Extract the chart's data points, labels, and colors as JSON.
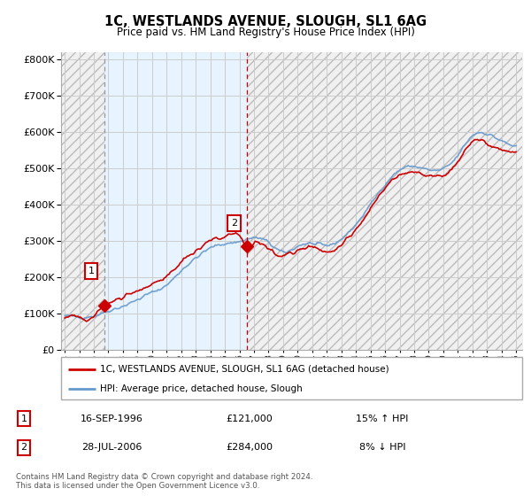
{
  "title": "1C, WESTLANDS AVENUE, SLOUGH, SL1 6AG",
  "subtitle": "Price paid vs. HM Land Registry's House Price Index (HPI)",
  "ytick_values": [
    0,
    100000,
    200000,
    300000,
    400000,
    500000,
    600000,
    700000,
    800000
  ],
  "ylim": [
    0,
    820000
  ],
  "sale1_date": 1996.71,
  "sale1_price": 121000,
  "sale2_date": 2006.54,
  "sale2_price": 284000,
  "line_color_property": "#cc0000",
  "line_color_hpi": "#6699cc",
  "legend_label_property": "1C, WESTLANDS AVENUE, SLOUGH, SL1 6AG (detached house)",
  "legend_label_hpi": "HPI: Average price, detached house, Slough",
  "table_rows": [
    {
      "num": "1",
      "date": "16-SEP-1996",
      "price": "£121,000",
      "hpi": "15% ↑ HPI"
    },
    {
      "num": "2",
      "date": "28-JUL-2006",
      "price": "£284,000",
      "hpi": "8% ↓ HPI"
    }
  ],
  "footnote": "Contains HM Land Registry data © Crown copyright and database right 2024.\nThis data is licensed under the Open Government Licence v3.0.",
  "background_color": "#ffffff",
  "plot_bg_color": "#ffffff",
  "grid_color": "#cccccc",
  "hatch_region_color": "#e8e8e8",
  "owned_region_color": "#ddeeff",
  "xmin": 1993.75,
  "xmax": 2025.4
}
